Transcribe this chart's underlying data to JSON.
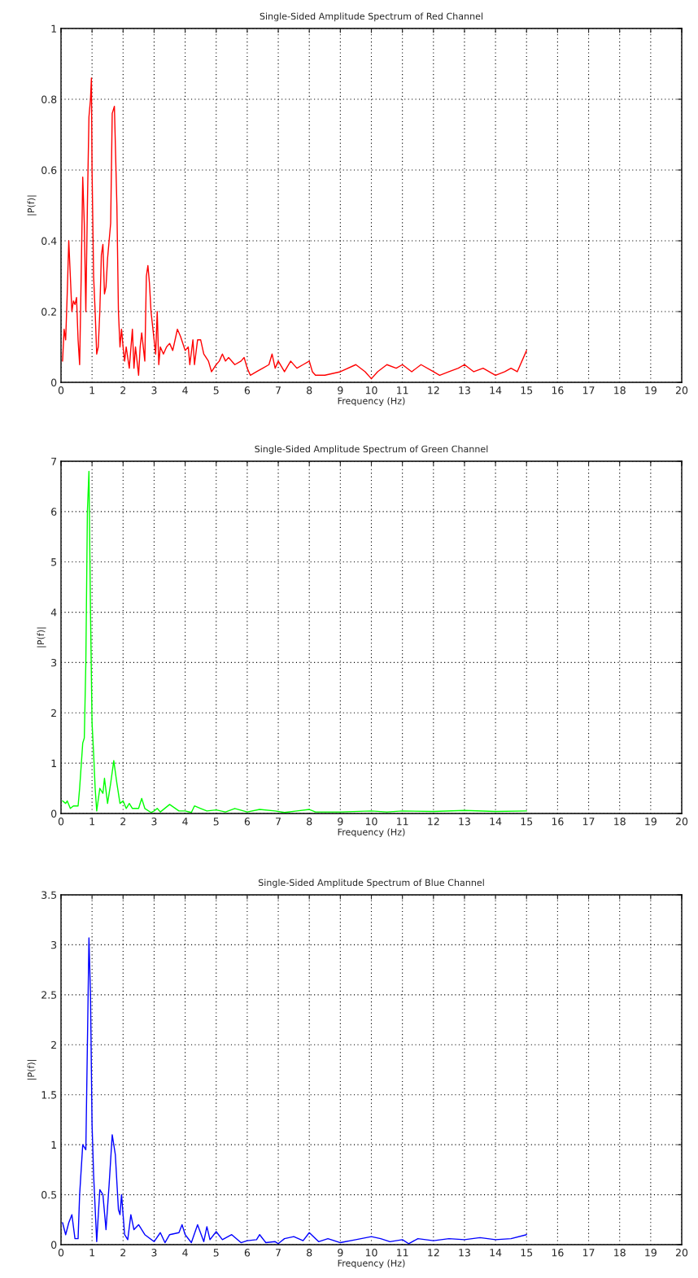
{
  "chart_data": [
    {
      "type": "line",
      "title": "Single-Sided Amplitude Spectrum of Red Channel",
      "xlabel": "Frequency (Hz)",
      "ylabel": "|P(f)|",
      "grid": true,
      "line_style": "solid",
      "xlim": [
        0,
        20
      ],
      "xticks": [
        0,
        1,
        2,
        3,
        4,
        5,
        6,
        7,
        8,
        9,
        10,
        11,
        12,
        13,
        14,
        15,
        16,
        17,
        18,
        19,
        20
      ],
      "ylim": [
        0,
        1
      ],
      "yticks": [
        0,
        0.2,
        0.4,
        0.6,
        0.8,
        1
      ],
      "series": [
        {
          "color": "#ff0000",
          "x": [
            0.05,
            0.1,
            0.15,
            0.2,
            0.25,
            0.3,
            0.35,
            0.4,
            0.45,
            0.5,
            0.55,
            0.6,
            0.65,
            0.7,
            0.75,
            0.8,
            0.85,
            0.9,
            0.95,
            0.98,
            1.0,
            1.05,
            1.1,
            1.15,
            1.2,
            1.25,
            1.3,
            1.35,
            1.4,
            1.45,
            1.5,
            1.6,
            1.65,
            1.72,
            1.8,
            1.85,
            1.9,
            1.95,
            2.0,
            2.05,
            2.1,
            2.2,
            2.3,
            2.35,
            2.4,
            2.5,
            2.55,
            2.6,
            2.7,
            2.75,
            2.8,
            2.85,
            2.9,
            3.0,
            3.05,
            3.1,
            3.15,
            3.2,
            3.3,
            3.4,
            3.5,
            3.6,
            3.75,
            3.85,
            4.0,
            4.1,
            4.15,
            4.25,
            4.3,
            4.4,
            4.5,
            4.6,
            4.75,
            4.85,
            5.0,
            5.1,
            5.2,
            5.3,
            5.4,
            5.6,
            5.8,
            5.9,
            6.0,
            6.1,
            6.3,
            6.5,
            6.7,
            6.8,
            6.9,
            7.0,
            7.2,
            7.4,
            7.6,
            7.8,
            8.0,
            8.1,
            8.2,
            8.5,
            9.0,
            9.5,
            9.8,
            10.0,
            10.2,
            10.5,
            10.8,
            11.0,
            11.3,
            11.6,
            12.0,
            12.2,
            12.5,
            12.8,
            13.0,
            13.3,
            13.6,
            14.0,
            14.3,
            14.5,
            14.7,
            15.0
          ],
          "values": [
            0.06,
            0.15,
            0.12,
            0.25,
            0.4,
            0.3,
            0.2,
            0.23,
            0.22,
            0.24,
            0.12,
            0.05,
            0.3,
            0.58,
            0.45,
            0.2,
            0.5,
            0.75,
            0.8,
            0.86,
            0.6,
            0.3,
            0.2,
            0.08,
            0.1,
            0.2,
            0.36,
            0.39,
            0.25,
            0.27,
            0.35,
            0.45,
            0.76,
            0.78,
            0.5,
            0.2,
            0.1,
            0.15,
            0.1,
            0.06,
            0.1,
            0.04,
            0.15,
            0.04,
            0.1,
            0.02,
            0.1,
            0.14,
            0.06,
            0.3,
            0.33,
            0.28,
            0.2,
            0.12,
            0.08,
            0.2,
            0.05,
            0.1,
            0.08,
            0.1,
            0.11,
            0.09,
            0.15,
            0.13,
            0.09,
            0.1,
            0.05,
            0.12,
            0.05,
            0.12,
            0.12,
            0.08,
            0.06,
            0.03,
            0.05,
            0.06,
            0.08,
            0.06,
            0.07,
            0.05,
            0.06,
            0.07,
            0.04,
            0.02,
            0.03,
            0.04,
            0.05,
            0.08,
            0.04,
            0.06,
            0.03,
            0.06,
            0.04,
            0.05,
            0.06,
            0.03,
            0.02,
            0.02,
            0.03,
            0.05,
            0.03,
            0.01,
            0.03,
            0.05,
            0.04,
            0.05,
            0.03,
            0.05,
            0.03,
            0.02,
            0.03,
            0.04,
            0.05,
            0.03,
            0.04,
            0.02,
            0.03,
            0.04,
            0.03,
            0.09
          ]
        }
      ]
    },
    {
      "type": "line",
      "title": "Single-Sided Amplitude Spectrum of Green Channel",
      "xlabel": "Frequency (Hz)",
      "ylabel": "|P(f)|",
      "grid": true,
      "line_style": "solid",
      "xlim": [
        0,
        20
      ],
      "xticks": [
        0,
        1,
        2,
        3,
        4,
        5,
        6,
        7,
        8,
        9,
        10,
        11,
        12,
        13,
        14,
        15,
        16,
        17,
        18,
        19,
        20
      ],
      "ylim": [
        0,
        7
      ],
      "yticks": [
        0,
        1,
        2,
        3,
        4,
        5,
        6,
        7
      ],
      "series": [
        {
          "color": "#00ff00",
          "x": [
            0.05,
            0.15,
            0.2,
            0.3,
            0.4,
            0.55,
            0.6,
            0.7,
            0.75,
            0.8,
            0.85,
            0.9,
            0.95,
            1.0,
            1.05,
            1.1,
            1.15,
            1.25,
            1.35,
            1.4,
            1.5,
            1.6,
            1.7,
            1.8,
            1.9,
            2.0,
            2.1,
            2.2,
            2.3,
            2.5,
            2.6,
            2.7,
            2.9,
            3.0,
            3.1,
            3.2,
            3.5,
            3.8,
            4.0,
            4.2,
            4.3,
            4.5,
            4.7,
            5.0,
            5.3,
            5.6,
            6.0,
            6.4,
            6.9,
            7.2,
            7.6,
            8.0,
            8.2,
            9.0,
            10.0,
            10.5,
            11.0,
            12.0,
            13.0,
            14.0,
            15.0
          ],
          "values": [
            0.25,
            0.2,
            0.25,
            0.1,
            0.15,
            0.15,
            0.5,
            1.4,
            1.5,
            3.0,
            6.0,
            6.8,
            4.0,
            1.8,
            1.2,
            0.5,
            0.05,
            0.5,
            0.4,
            0.7,
            0.2,
            0.6,
            1.05,
            0.6,
            0.2,
            0.25,
            0.1,
            0.2,
            0.1,
            0.1,
            0.3,
            0.1,
            0.02,
            0.05,
            0.1,
            0.03,
            0.18,
            0.05,
            0.05,
            0.02,
            0.15,
            0.1,
            0.05,
            0.07,
            0.03,
            0.1,
            0.03,
            0.08,
            0.05,
            0.02,
            0.05,
            0.08,
            0.03,
            0.03,
            0.05,
            0.03,
            0.05,
            0.04,
            0.06,
            0.04,
            0.05
          ]
        }
      ]
    },
    {
      "type": "line",
      "title": "Single-Sided Amplitude Spectrum of Blue Channel",
      "xlabel": "Frequency (Hz)",
      "ylabel": "|P(f)|",
      "grid": true,
      "line_style": "solid",
      "xlim": [
        0,
        20
      ],
      "xticks": [
        0,
        1,
        2,
        3,
        4,
        5,
        6,
        7,
        8,
        9,
        10,
        11,
        12,
        13,
        14,
        15,
        16,
        17,
        18,
        19,
        20
      ],
      "ylim": [
        0,
        3.5
      ],
      "yticks": [
        0,
        0.5,
        1,
        1.5,
        2,
        2.5,
        3,
        3.5
      ],
      "series": [
        {
          "color": "#0000ff",
          "x": [
            0.05,
            0.15,
            0.25,
            0.35,
            0.45,
            0.55,
            0.6,
            0.7,
            0.8,
            0.85,
            0.9,
            0.95,
            1.0,
            1.05,
            1.15,
            1.25,
            1.35,
            1.45,
            1.55,
            1.65,
            1.75,
            1.85,
            1.9,
            1.95,
            2.05,
            2.15,
            2.25,
            2.35,
            2.5,
            2.7,
            3.0,
            3.2,
            3.35,
            3.5,
            3.8,
            3.9,
            4.0,
            4.2,
            4.4,
            4.6,
            4.7,
            4.8,
            5.0,
            5.2,
            5.5,
            5.8,
            6.0,
            6.3,
            6.4,
            6.6,
            6.9,
            7.0,
            7.2,
            7.5,
            7.8,
            8.0,
            8.3,
            8.6,
            9.0,
            9.5,
            10.0,
            10.3,
            10.6,
            11.0,
            11.2,
            11.5,
            12.0,
            12.5,
            13.0,
            13.5,
            14.0,
            14.5,
            15.0
          ],
          "values": [
            0.22,
            0.1,
            0.22,
            0.3,
            0.06,
            0.06,
            0.5,
            1.0,
            0.95,
            2.0,
            3.07,
            2.5,
            1.2,
            0.7,
            0.03,
            0.55,
            0.5,
            0.15,
            0.6,
            1.1,
            0.9,
            0.35,
            0.3,
            0.5,
            0.1,
            0.05,
            0.3,
            0.15,
            0.2,
            0.1,
            0.03,
            0.12,
            0.02,
            0.1,
            0.12,
            0.2,
            0.1,
            0.02,
            0.2,
            0.03,
            0.18,
            0.05,
            0.13,
            0.05,
            0.1,
            0.02,
            0.04,
            0.05,
            0.1,
            0.02,
            0.03,
            0.01,
            0.06,
            0.08,
            0.04,
            0.12,
            0.03,
            0.06,
            0.02,
            0.05,
            0.08,
            0.06,
            0.03,
            0.05,
            0.01,
            0.06,
            0.04,
            0.06,
            0.05,
            0.07,
            0.05,
            0.06,
            0.1
          ]
        }
      ]
    }
  ]
}
